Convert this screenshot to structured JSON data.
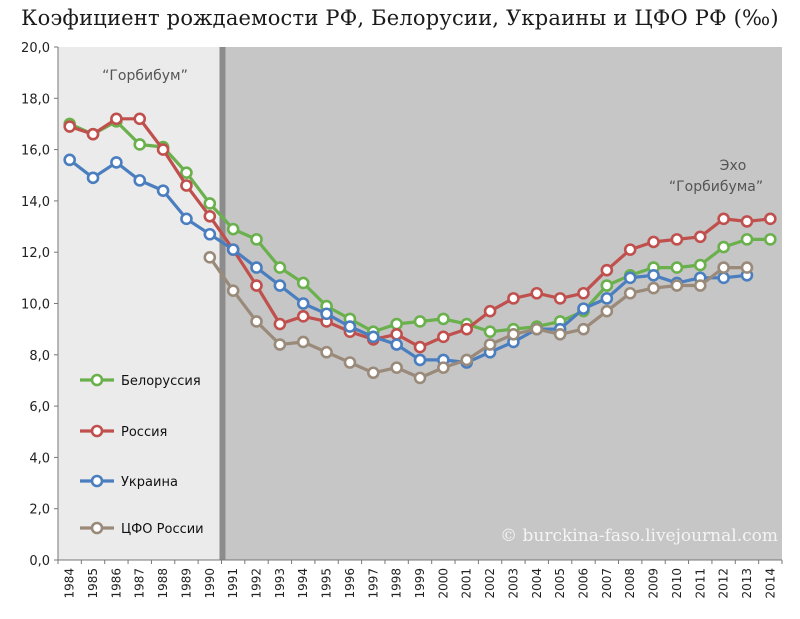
{
  "chart_data": {
    "type": "line",
    "title": "Коэфициент рождаемости РФ, Белорусии, Украины и ЦФО РФ (‰)",
    "xlabel": "",
    "ylabel": "",
    "ylim": [
      0,
      20
    ],
    "yticks": [
      "0,0",
      "2,0",
      "4,0",
      "6,0",
      "8,0",
      "10,0",
      "12,0",
      "14,0",
      "16,0",
      "18,0",
      "20,0"
    ],
    "x": [
      1984,
      1985,
      1986,
      1987,
      1988,
      1989,
      1990,
      1991,
      1992,
      1993,
      1994,
      1995,
      1996,
      1997,
      1998,
      1999,
      2000,
      2001,
      2002,
      2003,
      2004,
      2005,
      2006,
      2007,
      2008,
      2009,
      2010,
      2011,
      2012,
      2013,
      2014
    ],
    "series": [
      {
        "name": "Белоруссия",
        "color": "#6ab04c",
        "values": [
          17.0,
          16.6,
          17.1,
          16.2,
          16.1,
          15.1,
          13.9,
          12.9,
          12.5,
          11.4,
          10.8,
          9.9,
          9.4,
          8.9,
          9.2,
          9.3,
          9.4,
          9.2,
          8.9,
          9.0,
          9.1,
          9.3,
          9.7,
          10.7,
          11.1,
          11.4,
          11.4,
          11.5,
          12.2,
          12.5,
          12.5
        ]
      },
      {
        "name": "Россия",
        "color": "#c0504d",
        "values": [
          16.9,
          16.6,
          17.2,
          17.2,
          16.0,
          14.6,
          13.4,
          12.1,
          10.7,
          9.2,
          9.5,
          9.3,
          8.9,
          8.6,
          8.8,
          8.3,
          8.7,
          9.0,
          9.7,
          10.2,
          10.4,
          10.2,
          10.4,
          11.3,
          12.1,
          12.4,
          12.5,
          12.6,
          13.3,
          13.2,
          13.3
        ]
      },
      {
        "name": "Украина",
        "color": "#4a7ebf",
        "values": [
          15.6,
          14.9,
          15.5,
          14.8,
          14.4,
          13.3,
          12.7,
          12.1,
          11.4,
          10.7,
          10.0,
          9.6,
          9.1,
          8.7,
          8.4,
          7.8,
          7.8,
          7.7,
          8.1,
          8.5,
          9.0,
          9.0,
          9.8,
          10.2,
          11.0,
          11.1,
          10.8,
          11.0,
          11.0,
          11.1,
          null
        ]
      },
      {
        "name": "ЦФО России",
        "color": "#9a8a7a",
        "values": [
          null,
          null,
          null,
          null,
          null,
          null,
          11.8,
          10.5,
          9.3,
          8.4,
          8.5,
          8.1,
          7.7,
          7.3,
          7.5,
          7.1,
          7.5,
          7.8,
          8.4,
          8.8,
          9.0,
          8.8,
          9.0,
          9.7,
          10.4,
          10.6,
          10.7,
          10.7,
          11.4,
          11.4,
          null
        ]
      }
    ],
    "annotations": [
      {
        "text": "“Горбибум”"
      },
      {
        "text": "Эхо"
      },
      {
        "text": "“Горбибума”"
      }
    ],
    "watermark": "© burckina-faso.livejournal.com",
    "shading": {
      "left_color": "#ebebeb",
      "right_color": "#c6c6c6",
      "divider_color": "#8c8c8c",
      "divider_year": 1991
    },
    "legend_placement": "left",
    "grid": false
  }
}
